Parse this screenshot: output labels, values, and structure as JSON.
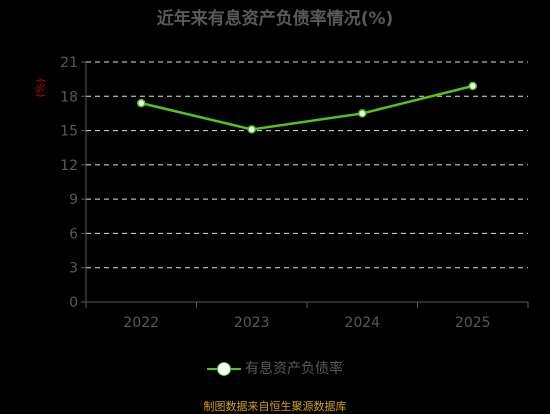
{
  "chart_data": {
    "type": "line",
    "title": "近年来有息资产负债率情况(%)",
    "ylabel": "(%)",
    "categories": [
      "2022",
      "2023",
      "2024",
      "2025"
    ],
    "series": [
      {
        "name": "有息资产负债率",
        "values": [
          17.4,
          15.1,
          16.5,
          18.9
        ]
      }
    ],
    "ylim": [
      0,
      21
    ],
    "yticks": [
      0,
      3,
      6,
      9,
      12,
      15,
      18,
      21
    ],
    "grid": true,
    "legend_position": "bottom",
    "colors": {
      "line": "#52c41a",
      "axis": "#595959",
      "ylabel": "#cc0000",
      "source": "#d4a017"
    }
  },
  "source_text": "制图数据来自恒生聚源数据库"
}
